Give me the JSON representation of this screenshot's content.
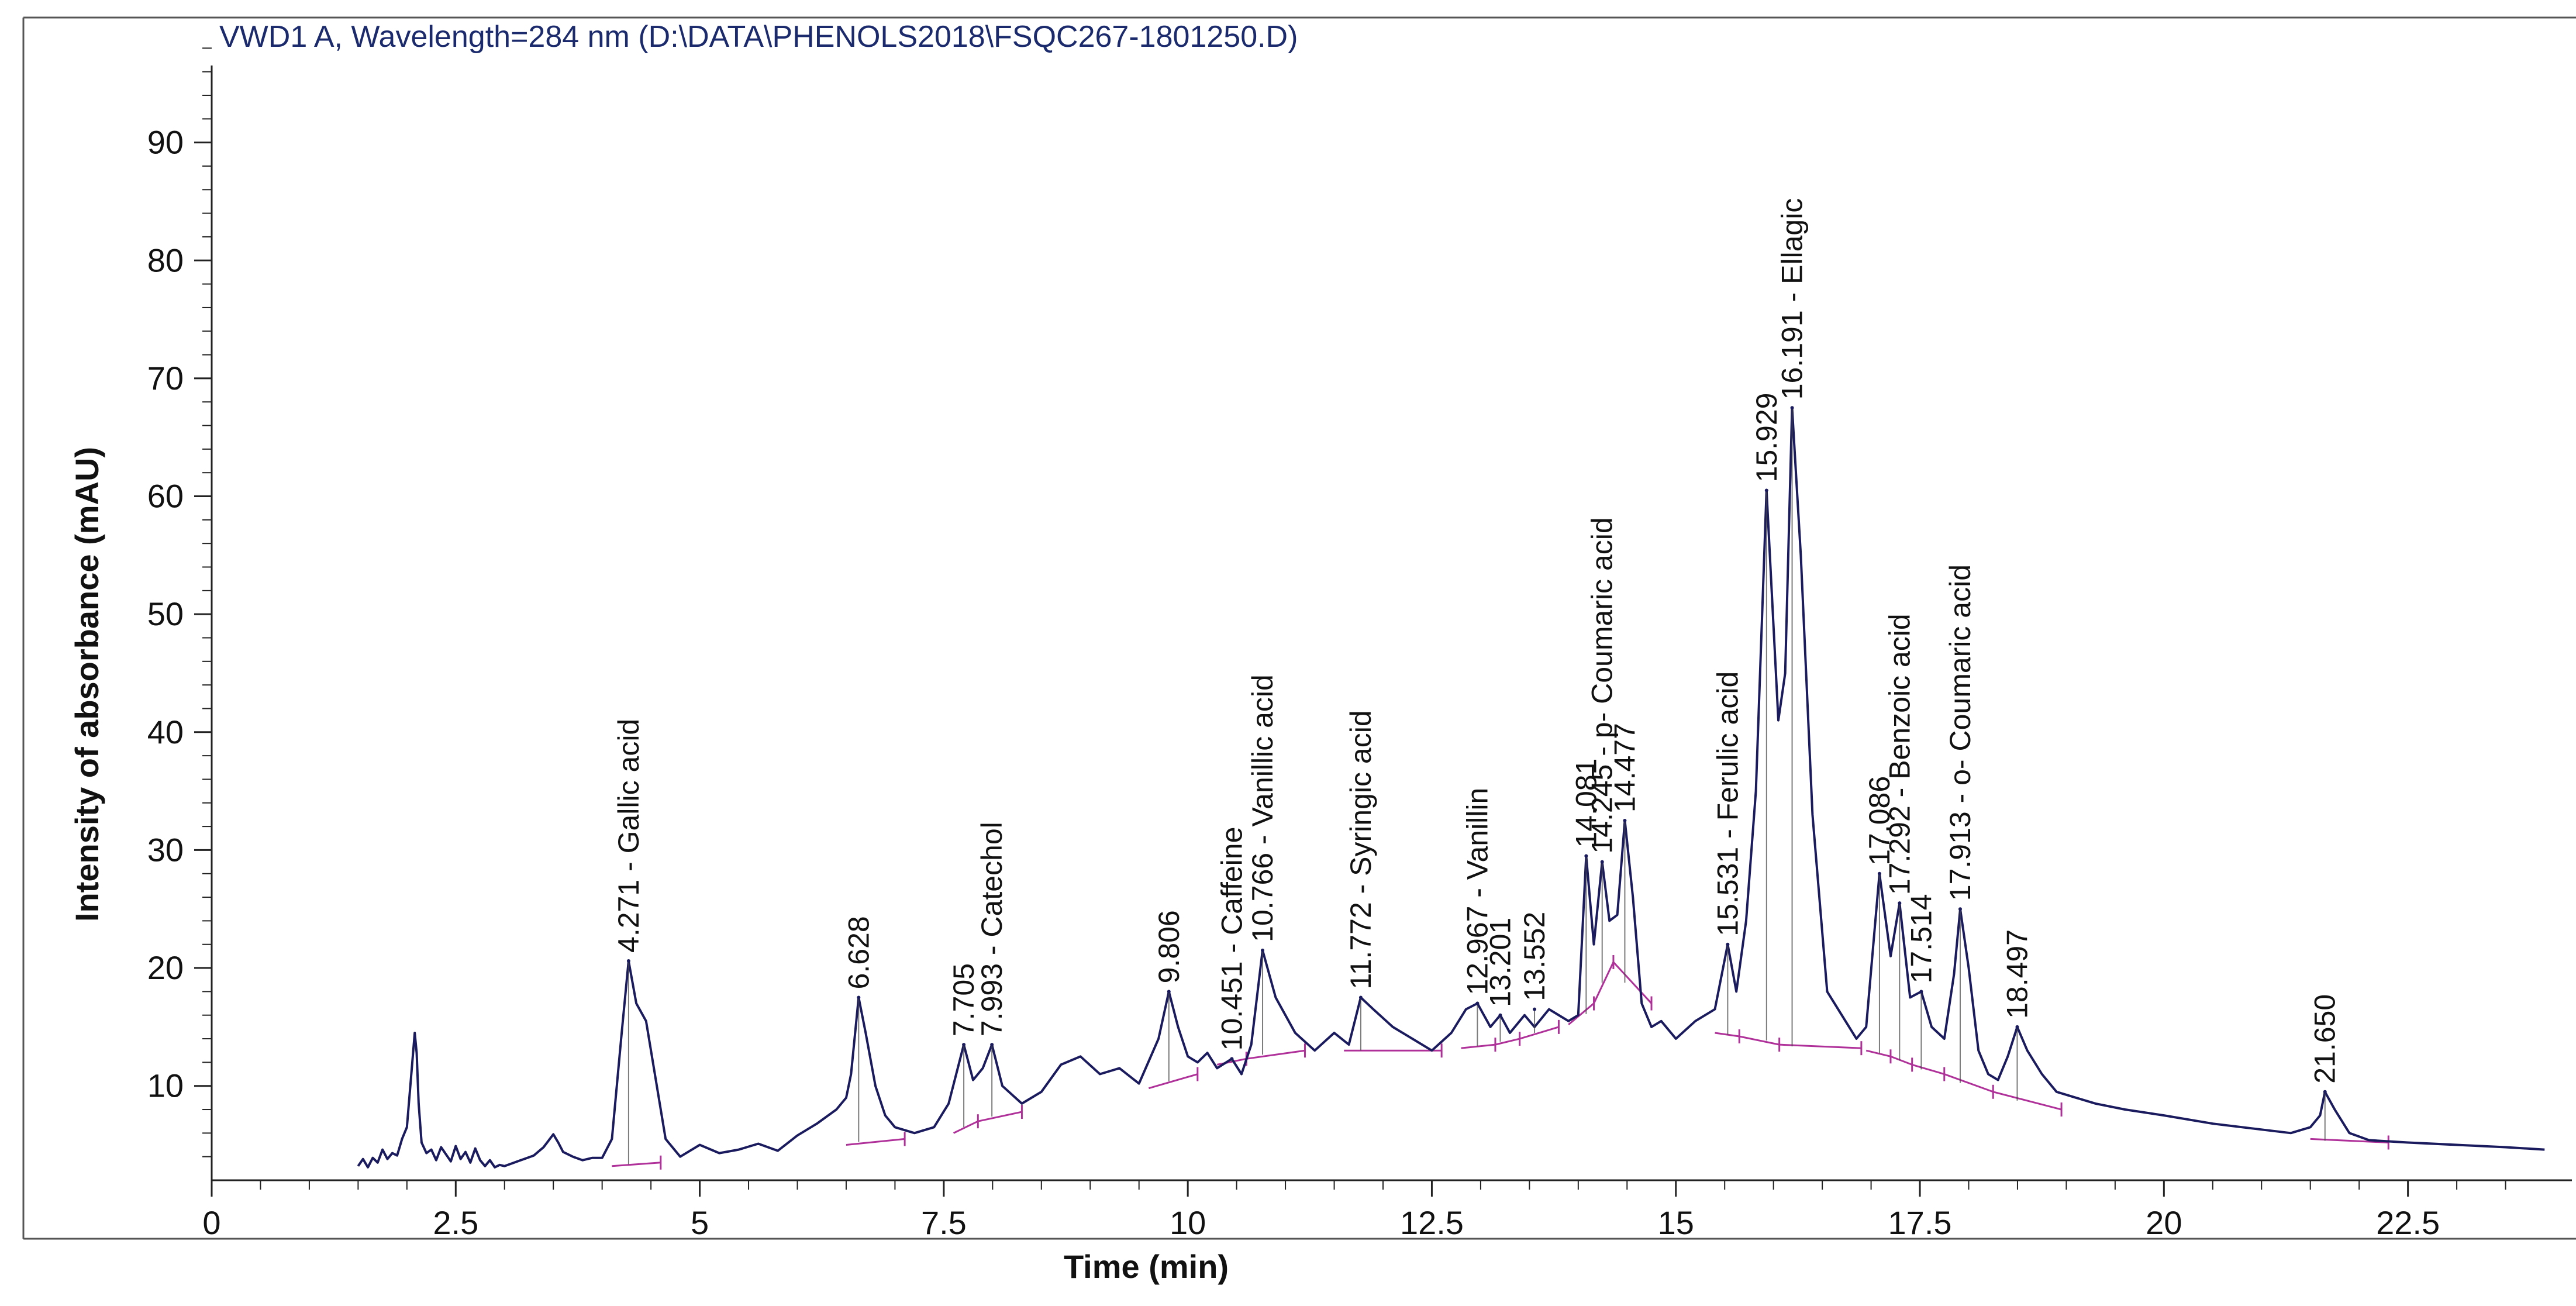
{
  "chart_data": {
    "type": "line",
    "title": "VWD1 A, Wavelength=284 nm (D:\\DATA\\PHENOLS2018\\FSQC267-1801250.D)",
    "xlabel": "Time (min)",
    "ylabel": "Intensity of absorbance (mAU)",
    "xlim": [
      0,
      24
    ],
    "ylim": [
      2,
      100
    ],
    "x_ticks": [
      0,
      2.5,
      5,
      7.5,
      10,
      12.5,
      15,
      17.5,
      20,
      22.5
    ],
    "x_tick_labels": [
      "0",
      "2.5",
      "5",
      "7.5",
      "10",
      "12.5",
      "15",
      "17.5",
      "20",
      "22.5"
    ],
    "y_ticks": [
      10,
      20,
      30,
      40,
      50,
      60,
      70,
      80,
      90
    ],
    "y_tick_labels": [
      "10",
      "20",
      "30",
      "40",
      "50",
      "60",
      "70",
      "80",
      "90"
    ],
    "grid": false,
    "colors": {
      "trace": "#1a1a5e",
      "integration": "#b0309a",
      "title": "#1a2a6c",
      "axis": "#222222"
    },
    "trace": {
      "x": [
        1.5,
        1.55,
        1.6,
        1.65,
        1.7,
        1.75,
        1.8,
        1.85,
        1.9,
        1.95,
        2.0,
        2.05,
        2.08,
        2.1,
        2.12,
        2.15,
        2.2,
        2.25,
        2.3,
        2.35,
        2.4,
        2.45,
        2.5,
        2.55,
        2.6,
        2.65,
        2.7,
        2.75,
        2.8,
        2.85,
        2.9,
        2.95,
        3.0,
        3.1,
        3.2,
        3.3,
        3.4,
        3.5,
        3.55,
        3.6,
        3.7,
        3.8,
        3.9,
        4.0,
        4.1,
        4.2,
        4.271,
        4.35,
        4.45,
        4.55,
        4.65,
        4.8,
        5.0,
        5.2,
        5.4,
        5.6,
        5.8,
        6.0,
        6.2,
        6.4,
        6.5,
        6.55,
        6.628,
        6.7,
        6.8,
        6.9,
        7.0,
        7.2,
        7.4,
        7.55,
        7.705,
        7.8,
        7.9,
        7.993,
        8.1,
        8.3,
        8.5,
        8.7,
        8.9,
        9.1,
        9.3,
        9.5,
        9.7,
        9.806,
        9.9,
        10.0,
        10.1,
        10.2,
        10.3,
        10.451,
        10.55,
        10.65,
        10.766,
        10.9,
        11.1,
        11.3,
        11.5,
        11.65,
        11.772,
        11.9,
        12.1,
        12.3,
        12.5,
        12.7,
        12.85,
        12.967,
        13.1,
        13.201,
        13.3,
        13.45,
        13.552,
        13.7,
        13.9,
        14.0,
        14.081,
        14.16,
        14.245,
        14.32,
        14.4,
        14.477,
        14.56,
        14.65,
        14.75,
        14.85,
        15.0,
        15.2,
        15.4,
        15.531,
        15.62,
        15.72,
        15.82,
        15.929,
        16.05,
        16.12,
        16.191,
        16.28,
        16.4,
        16.55,
        16.7,
        16.85,
        16.95,
        17.086,
        17.2,
        17.292,
        17.4,
        17.514,
        17.62,
        17.75,
        17.85,
        17.913,
        18.0,
        18.1,
        18.2,
        18.3,
        18.4,
        18.497,
        18.6,
        18.75,
        18.9,
        19.1,
        19.3,
        19.6,
        20.0,
        20.5,
        21.0,
        21.3,
        21.5,
        21.6,
        21.65,
        21.75,
        21.9,
        22.1,
        22.5,
        23.0,
        23.5,
        23.9
      ],
      "y": [
        3.2,
        3.8,
        3.1,
        3.9,
        3.5,
        4.6,
        3.8,
        4.3,
        4.1,
        5.5,
        6.5,
        11.5,
        14.5,
        12.8,
        8.5,
        5.2,
        4.3,
        4.6,
        3.7,
        4.8,
        4.2,
        3.6,
        4.9,
        3.8,
        4.4,
        3.5,
        4.7,
        3.7,
        3.2,
        3.7,
        3.1,
        3.3,
        3.2,
        3.5,
        3.8,
        4.1,
        4.8,
        5.9,
        5.2,
        4.4,
        4.0,
        3.7,
        3.9,
        3.9,
        5.5,
        14.5,
        20.6,
        17.0,
        15.5,
        10.5,
        5.5,
        4.0,
        5.0,
        4.3,
        4.6,
        5.1,
        4.5,
        5.8,
        6.8,
        8.0,
        9.0,
        11.0,
        17.5,
        14.5,
        10.0,
        7.5,
        6.5,
        6.0,
        6.5,
        8.5,
        13.5,
        10.5,
        11.5,
        13.5,
        10.0,
        8.5,
        9.5,
        11.8,
        12.5,
        11.0,
        11.5,
        10.2,
        14.0,
        18.0,
        15.0,
        12.5,
        12.0,
        12.8,
        11.5,
        12.3,
        11.0,
        13.5,
        21.5,
        17.5,
        14.5,
        13.0,
        14.5,
        13.5,
        17.5,
        16.5,
        15.0,
        14.0,
        13.0,
        14.5,
        16.5,
        17.0,
        15.0,
        16.0,
        14.5,
        16.0,
        15.0,
        16.5,
        15.5,
        16.0,
        29.5,
        22.0,
        29.0,
        24.0,
        24.5,
        32.5,
        26.0,
        17.0,
        15.0,
        15.5,
        14.0,
        15.5,
        16.5,
        22.0,
        18.0,
        24.0,
        35.0,
        60.5,
        41.0,
        45.0,
        67.5,
        55.0,
        33.0,
        18.0,
        16.0,
        14.0,
        15.0,
        28.0,
        21.0,
        25.5,
        17.5,
        18.0,
        15.0,
        14.0,
        19.5,
        25.0,
        20.0,
        13.0,
        11.0,
        10.5,
        12.5,
        15.0,
        13.0,
        11.0,
        9.5,
        9.0,
        8.5,
        8.0,
        7.5,
        6.8,
        6.3,
        6.0,
        6.5,
        7.5,
        9.5,
        8.0,
        6.0,
        5.4,
        5.2,
        5.0,
        4.8,
        4.6
      ]
    },
    "peaks": [
      {
        "rt": 4.271,
        "height": 20.6,
        "label": "4.271 -  Gallic acid",
        "baseline": [
          [
            4.1,
            3.2
          ],
          [
            4.6,
            3.5
          ]
        ]
      },
      {
        "rt": 6.628,
        "height": 17.5,
        "label": "6.628",
        "baseline": [
          [
            6.5,
            5.0
          ],
          [
            7.1,
            5.5
          ]
        ]
      },
      {
        "rt": 7.705,
        "height": 13.5,
        "label": "7.705",
        "baseline": [
          [
            7.6,
            6.0
          ],
          [
            7.85,
            7.0
          ]
        ]
      },
      {
        "rt": 7.993,
        "height": 13.5,
        "label": "7.993 -  Catechol",
        "baseline": [
          [
            7.85,
            7.0
          ],
          [
            8.3,
            7.8
          ]
        ]
      },
      {
        "rt": 9.806,
        "height": 18.0,
        "label": "9.806",
        "baseline": [
          [
            9.6,
            9.8
          ],
          [
            10.1,
            11.0
          ]
        ]
      },
      {
        "rt": 10.451,
        "height": 12.3,
        "label": "10.451 -  Caffeine",
        "baseline": [
          [
            10.3,
            11.8
          ],
          [
            10.6,
            12.3
          ]
        ]
      },
      {
        "rt": 10.766,
        "height": 21.5,
        "label": "10.766 -  Vanillic acid",
        "baseline": [
          [
            10.6,
            12.3
          ],
          [
            11.2,
            13.0
          ]
        ]
      },
      {
        "rt": 11.772,
        "height": 17.5,
        "label": "11.772 -  Syringic acid",
        "baseline": [
          [
            11.6,
            13.0
          ],
          [
            12.6,
            13.0
          ]
        ]
      },
      {
        "rt": 12.967,
        "height": 17.0,
        "label": "12.967 -  Vanillin",
        "baseline": [
          [
            12.8,
            13.2
          ],
          [
            13.15,
            13.5
          ]
        ]
      },
      {
        "rt": 13.201,
        "height": 16.0,
        "label": "13.201",
        "baseline": [
          [
            13.15,
            13.5
          ],
          [
            13.4,
            14.0
          ]
        ]
      },
      {
        "rt": 13.552,
        "height": 16.5,
        "label": "13.552",
        "baseline": [
          [
            13.4,
            14.0
          ],
          [
            13.8,
            15.0
          ]
        ]
      },
      {
        "rt": 14.081,
        "height": 29.5,
        "label": "14.081",
        "baseline": [
          [
            13.9,
            15.2
          ],
          [
            14.16,
            17.0
          ]
        ]
      },
      {
        "rt": 14.245,
        "height": 29.0,
        "label": "14.245 -  p- Coumaric acid",
        "baseline": [
          [
            14.16,
            17.0
          ],
          [
            14.36,
            20.5
          ]
        ]
      },
      {
        "rt": 14.477,
        "height": 32.5,
        "label": "14.477",
        "baseline": [
          [
            14.36,
            20.5
          ],
          [
            14.75,
            17.0
          ]
        ]
      },
      {
        "rt": 15.531,
        "height": 22.0,
        "label": "15.531 -  Ferulic acid",
        "baseline": [
          [
            15.4,
            14.5
          ],
          [
            15.65,
            14.2
          ]
        ]
      },
      {
        "rt": 15.929,
        "height": 60.5,
        "label": "15.929",
        "baseline": [
          [
            15.65,
            14.2
          ],
          [
            16.06,
            13.5
          ]
        ]
      },
      {
        "rt": 16.191,
        "height": 67.5,
        "label": "16.191 -  Ellagic",
        "baseline": [
          [
            16.06,
            13.5
          ],
          [
            16.9,
            13.2
          ]
        ]
      },
      {
        "rt": 17.086,
        "height": 28.0,
        "label": "17.086",
        "baseline": [
          [
            16.95,
            13.0
          ],
          [
            17.2,
            12.5
          ]
        ]
      },
      {
        "rt": 17.292,
        "height": 25.5,
        "label": "17.292 -  Benzoic acid",
        "baseline": [
          [
            17.2,
            12.5
          ],
          [
            17.42,
            11.8
          ]
        ]
      },
      {
        "rt": 17.514,
        "height": 18.0,
        "label": "17.514",
        "baseline": [
          [
            17.42,
            11.8
          ],
          [
            17.75,
            11.0
          ]
        ]
      },
      {
        "rt": 17.913,
        "height": 25.0,
        "label": "17.913 -  o- Coumaric acid",
        "baseline": [
          [
            17.75,
            11.0
          ],
          [
            18.25,
            9.5
          ]
        ]
      },
      {
        "rt": 18.497,
        "height": 15.0,
        "label": "18.497",
        "baseline": [
          [
            18.25,
            9.5
          ],
          [
            18.95,
            8.0
          ]
        ]
      },
      {
        "rt": 21.65,
        "height": 9.5,
        "label": "21.650",
        "baseline": [
          [
            21.5,
            5.5
          ],
          [
            22.3,
            5.2
          ]
        ]
      }
    ]
  }
}
